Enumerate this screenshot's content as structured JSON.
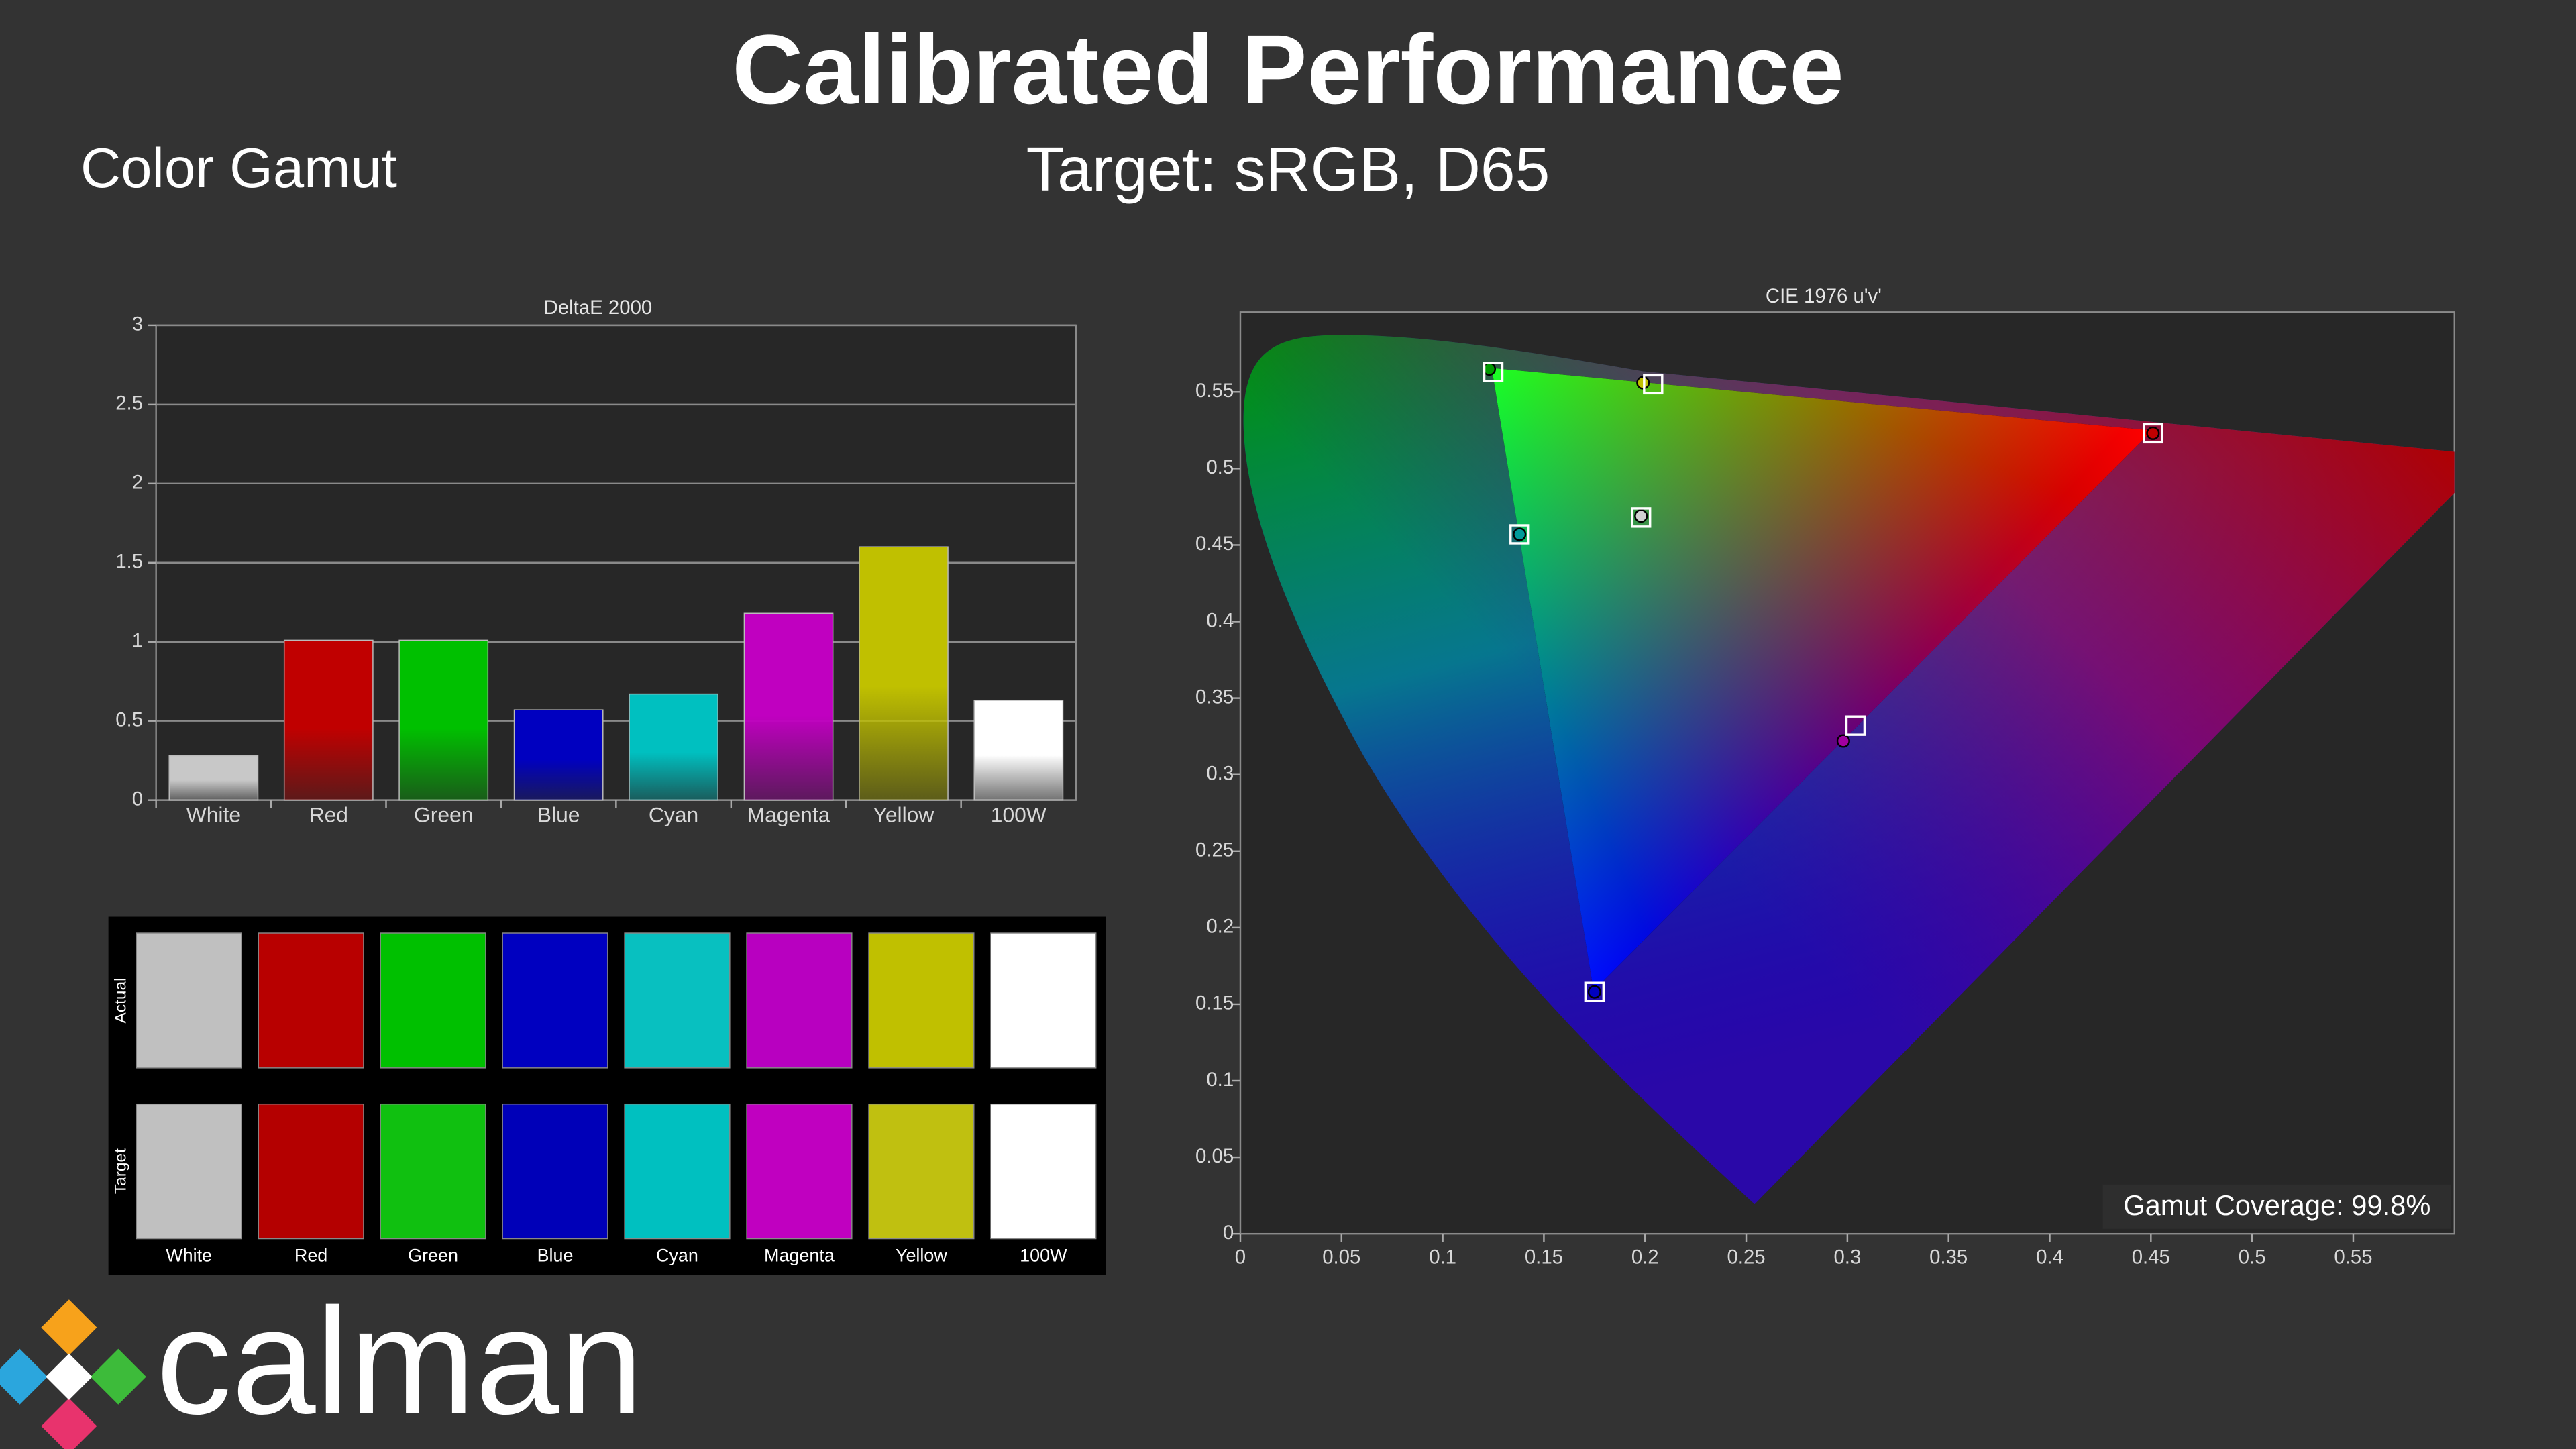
{
  "header": {
    "title": "Calibrated Performance",
    "subtitle": "Target: sRGB, D65",
    "section": "Color Gamut"
  },
  "chart_data": [
    {
      "type": "bar",
      "title": "DeltaE 2000",
      "categories": [
        "White",
        "Red",
        "Green",
        "Blue",
        "Cyan",
        "Magenta",
        "Yellow",
        "100W"
      ],
      "values": [
        0.28,
        1.01,
        1.01,
        0.57,
        0.67,
        1.18,
        1.6,
        0.63
      ],
      "colors": [
        "#c8c8c8",
        "#c00000",
        "#00c000",
        "#0000c0",
        "#00c0c0",
        "#c000c0",
        "#c0c000",
        "#ffffff"
      ],
      "ylim": [
        0,
        3
      ],
      "yticks": [
        0,
        0.5,
        1,
        1.5,
        2,
        2.5,
        3
      ],
      "grid": true
    },
    {
      "type": "scatter",
      "title": "CIE 1976 u'v'",
      "xlim": [
        0,
        0.6
      ],
      "ylim": [
        0,
        0.6
      ],
      "xticks": [
        0,
        0.05,
        0.1,
        0.15,
        0.2,
        0.25,
        0.3,
        0.35,
        0.4,
        0.45,
        0.5,
        0.55
      ],
      "yticks": [
        0,
        0.05,
        0.1,
        0.15,
        0.2,
        0.25,
        0.3,
        0.35,
        0.4,
        0.45,
        0.5,
        0.55
      ],
      "annotation": "Gamut Coverage:  99.8%",
      "series": [
        {
          "marker": "circle",
          "colors": [
            "#d0d0d0",
            "#c00000",
            "#009a00",
            "#0000c0",
            "#009a9a",
            "#a000a0",
            "#c0c000"
          ],
          "x": [
            0.198,
            0.451,
            0.123,
            0.175,
            0.138,
            0.298,
            0.199
          ],
          "y": [
            0.469,
            0.523,
            0.565,
            0.158,
            0.457,
            0.322,
            0.556
          ]
        },
        {
          "marker": "square",
          "color": "#ffffff",
          "x": [
            0.198,
            0.451,
            0.125,
            0.175,
            0.138,
            0.304,
            0.204
          ],
          "y": [
            0.468,
            0.523,
            0.563,
            0.158,
            0.457,
            0.332,
            0.555
          ]
        }
      ]
    }
  ],
  "swatches": {
    "row_labels": [
      "Actual",
      "Target"
    ],
    "names": [
      "White",
      "Red",
      "Green",
      "Blue",
      "Cyan",
      "Magenta",
      "Yellow",
      "100W"
    ],
    "actual": [
      "#c0c0c0",
      "#b80000",
      "#00c000",
      "#0000c0",
      "#08c0c0",
      "#b800c0",
      "#c0c000",
      "#ffffff"
    ],
    "target": [
      "#c0c0c0",
      "#b40000",
      "#10c010",
      "#0000b8",
      "#00c0c0",
      "#c000c0",
      "#c0c010",
      "#ffffff"
    ]
  },
  "logo": "calman"
}
